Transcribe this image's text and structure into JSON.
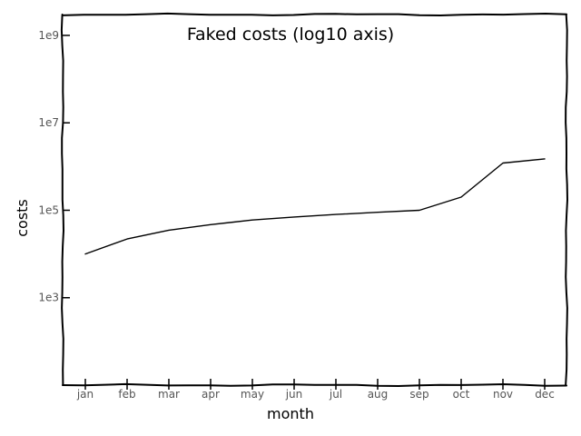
{
  "chart_data": {
    "type": "line",
    "title": "Faked costs (log10 axis)",
    "xlabel": "month",
    "ylabel": "costs",
    "y_scale": "log10",
    "ylim": [
      10,
      3000000000
    ],
    "categories": [
      "jan",
      "feb",
      "mar",
      "apr",
      "may",
      "jun",
      "jul",
      "aug",
      "sep",
      "oct",
      "nov",
      "dec"
    ],
    "y_ticks": [
      1000,
      100000,
      10000000,
      1000000000
    ],
    "y_tick_labels": [
      "1e3",
      "1e5",
      "1e7",
      "1e9"
    ],
    "series": [
      {
        "values": [
          10000,
          22000,
          35000,
          47000,
          60000,
          70000,
          80000,
          90000,
          100000,
          200000,
          1200000,
          1500000
        ]
      }
    ],
    "grid": false,
    "legend": "none",
    "style": "xkcd",
    "colors": {
      "line": "#000000",
      "tick_label": "#555555"
    }
  }
}
